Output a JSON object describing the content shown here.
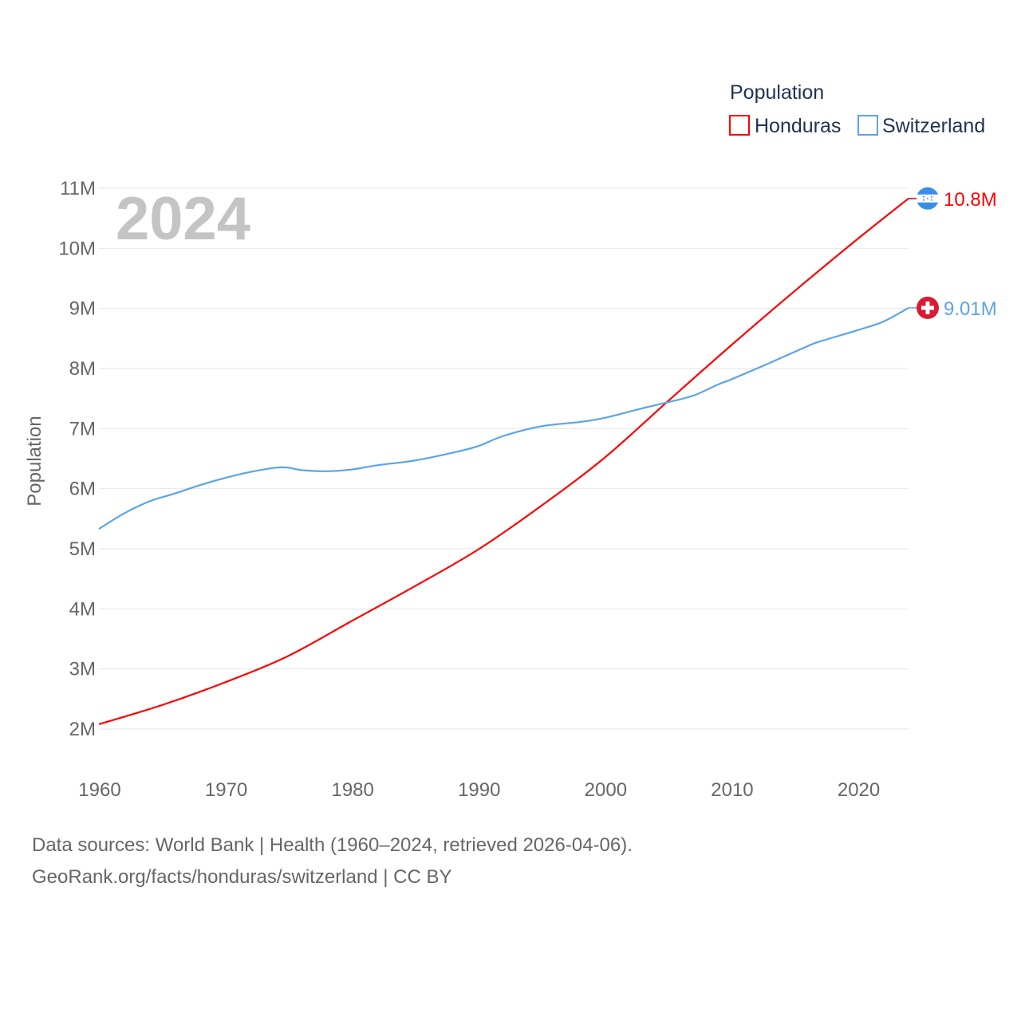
{
  "chart_data": {
    "type": "line",
    "year_label": "2024",
    "ylabel": "Population",
    "xlim": [
      1960,
      2024
    ],
    "ylim": [
      2000000,
      11000000
    ],
    "x_ticks": [
      "1960",
      "1970",
      "1980",
      "1990",
      "2000",
      "2010",
      "2020"
    ],
    "y_ticks": [
      "2M",
      "3M",
      "4M",
      "5M",
      "6M",
      "7M",
      "8M",
      "9M",
      "10M",
      "11M"
    ],
    "grid": true,
    "legend": {
      "title": "Population",
      "placement": "top-right"
    },
    "series": [
      {
        "name": "Honduras",
        "color": "#ff0000",
        "end_label": "10.8M",
        "flag_icon": "honduras-flag",
        "x": [
          1960,
          1965,
          1970,
          1975,
          1980,
          1985,
          1990,
          1995,
          2000,
          2005,
          2010,
          2015,
          2020,
          2024
        ],
        "y": [
          2.08,
          2.4,
          2.78,
          3.22,
          3.8,
          4.38,
          4.99,
          5.72,
          6.52,
          7.46,
          8.39,
          9.29,
          10.16,
          10.83
        ]
      },
      {
        "name": "Switzerland",
        "color": "#5ba4e8",
        "end_label": "9.01M",
        "flag_icon": "switzerland-flag",
        "x": [
          1960,
          1962,
          1964,
          1966,
          1968,
          1970,
          1972,
          1974,
          1975,
          1976,
          1978,
          1980,
          1982,
          1985,
          1988,
          1990,
          1992,
          1995,
          1998,
          2000,
          2003,
          2005,
          2007,
          2009,
          2010,
          2013,
          2016,
          2017,
          2020,
          2022,
          2024
        ],
        "y": [
          5.33,
          5.59,
          5.79,
          5.92,
          6.06,
          6.18,
          6.28,
          6.35,
          6.35,
          6.31,
          6.29,
          6.32,
          6.39,
          6.47,
          6.6,
          6.71,
          6.88,
          7.04,
          7.11,
          7.18,
          7.34,
          7.44,
          7.55,
          7.74,
          7.82,
          8.09,
          8.37,
          8.45,
          8.64,
          8.78,
          9.01
        ]
      }
    ]
  },
  "footer": {
    "line1": "Data sources: World Bank | Health (1960–2024, retrieved 2026-04-06).",
    "line2": "GeoRank.org/facts/honduras/switzerland | CC BY"
  }
}
